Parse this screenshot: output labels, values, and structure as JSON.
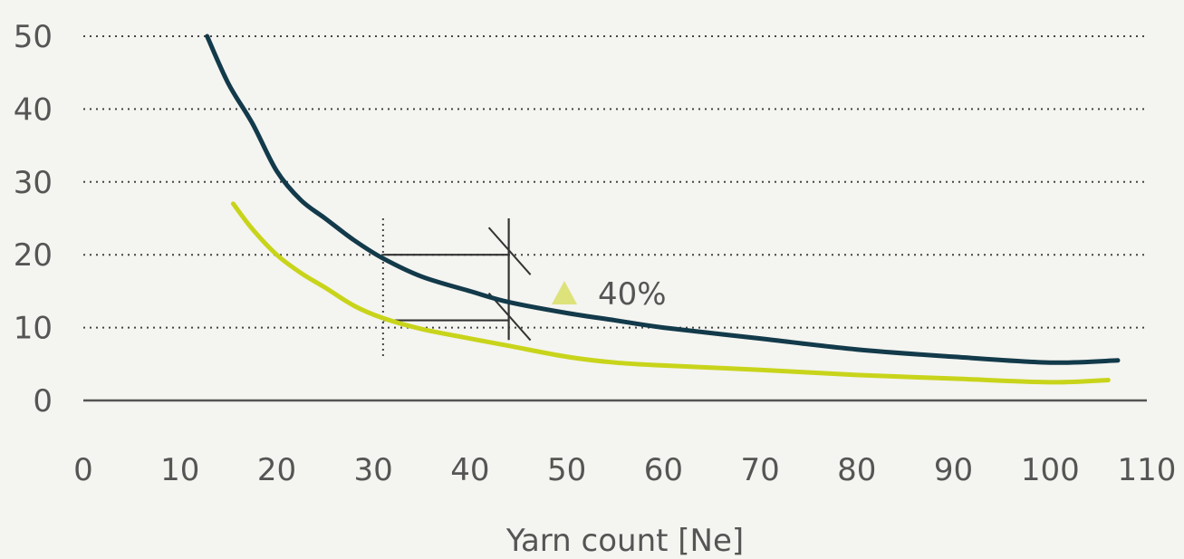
{
  "chart_data": {
    "type": "line",
    "title": "",
    "xlabel": "Yarn count [Ne]",
    "ylabel": "",
    "xlim": [
      0,
      110
    ],
    "ylim": [
      0,
      50
    ],
    "xticks": [
      "0",
      "10",
      "20",
      "30",
      "40",
      "50",
      "60",
      "70",
      "80",
      "90",
      "100",
      "110"
    ],
    "yticks": [
      "0",
      "10",
      "20",
      "30",
      "40",
      "50"
    ],
    "grid": "horizontal dotted",
    "series": [
      {
        "color": "#123a4a",
        "points": [
          [
            12.8,
            50
          ],
          [
            15,
            43.5
          ],
          [
            17.5,
            38
          ],
          [
            20,
            31.5
          ],
          [
            22.5,
            27.5
          ],
          [
            25,
            25
          ],
          [
            28,
            22
          ],
          [
            31,
            19.5
          ],
          [
            35,
            17
          ],
          [
            40,
            15
          ],
          [
            44,
            13.5
          ],
          [
            50,
            12
          ],
          [
            55,
            11
          ],
          [
            60,
            10
          ],
          [
            70,
            8.5
          ],
          [
            80,
            7
          ],
          [
            90,
            6
          ],
          [
            100,
            5.2
          ],
          [
            107,
            5.5
          ]
        ]
      },
      {
        "color": "#c8d41a",
        "points": [
          [
            15.5,
            27
          ],
          [
            17.5,
            23.5
          ],
          [
            20,
            20
          ],
          [
            22.5,
            17.5
          ],
          [
            25,
            15.5
          ],
          [
            28,
            13
          ],
          [
            31,
            11.3
          ],
          [
            35,
            9.8
          ],
          [
            40,
            8.5
          ],
          [
            44,
            7.5
          ],
          [
            50,
            6
          ],
          [
            55,
            5.2
          ],
          [
            60,
            4.8
          ],
          [
            70,
            4.2
          ],
          [
            80,
            3.5
          ],
          [
            90,
            3
          ],
          [
            100,
            2.5
          ],
          [
            106,
            2.8
          ]
        ]
      }
    ],
    "annotations": {
      "label": "40%",
      "marker_color": "#dde27a",
      "x_ref": 31,
      "x_cmp": 44,
      "y_high": 20,
      "y_low": 11
    }
  }
}
